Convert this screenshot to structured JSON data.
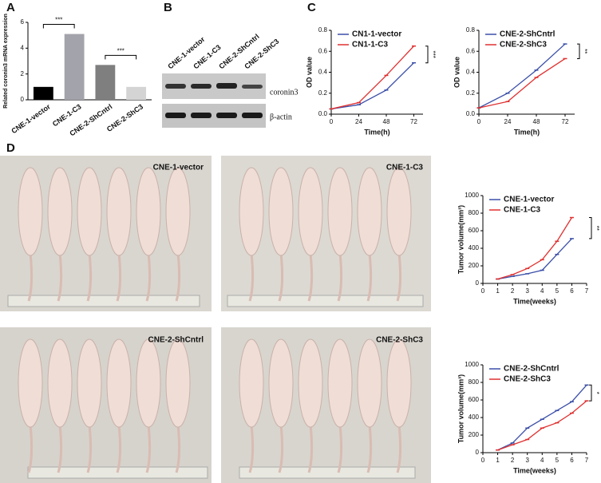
{
  "panel_labels": [
    "A",
    "B",
    "C",
    "D"
  ],
  "blot": {
    "lanes": [
      "CNE-1-vector",
      "CNE-1-C3",
      "CNE-2-ShCntrl",
      "CNE-2-ShC3"
    ],
    "bands": [
      "coronin3",
      "β-actin"
    ]
  },
  "photos": [
    "CNE-1-vector",
    "CNE-1-C3",
    "CNE-2-ShCntrl",
    "CNE-2-ShC3"
  ],
  "chart_data": [
    {
      "type": "bar",
      "ylabel": "Related coronin3 mRNA expression",
      "categories": [
        "CNE-1-vector",
        "CNE-1-C3",
        "CNE-2-ShCntrl",
        "CNE-2-ShC3"
      ],
      "values": [
        1,
        5.1,
        2.7,
        1
      ],
      "colors": [
        "#000000",
        "#a3a3ab",
        "#7f7f7f",
        "#d4d4d4"
      ],
      "ylim": [
        0,
        6
      ],
      "yticks": [
        0,
        2,
        4,
        6
      ],
      "annotations": [
        "***",
        "***"
      ]
    },
    {
      "type": "line",
      "xlabel": "Time(h)",
      "ylabel": "OD value",
      "x": [
        0,
        24,
        48,
        72
      ],
      "series": [
        {
          "name": "CN1-1-vector",
          "color": "#3b4fa8",
          "values": [
            0.05,
            0.09,
            0.23,
            0.49
          ]
        },
        {
          "name": "CN1-1-C3",
          "color": "#e03030",
          "values": [
            0.05,
            0.11,
            0.37,
            0.65
          ]
        }
      ],
      "xlim": [
        0,
        80
      ],
      "xticks": [
        0,
        24,
        48,
        72
      ],
      "ylim": [
        0,
        0.8
      ],
      "yticks": [
        {
          "value": 0,
          "label": "0.0"
        },
        0.2,
        0.4,
        0.6,
        0.8
      ],
      "legend": "upper left",
      "annotation": "***"
    },
    {
      "type": "line",
      "xlabel": "Time(h)",
      "ylabel": "OD value",
      "x": [
        0,
        24,
        48,
        72
      ],
      "series": [
        {
          "name": "CNE-2-ShCntrl",
          "color": "#3b4fa8",
          "values": [
            0.06,
            0.2,
            0.42,
            0.67
          ]
        },
        {
          "name": "CNE-2-ShC3",
          "color": "#e03030",
          "values": [
            0.06,
            0.12,
            0.35,
            0.53
          ]
        }
      ],
      "xlim": [
        0,
        80
      ],
      "xticks": [
        0,
        24,
        48,
        72
      ],
      "ylim": [
        0,
        0.8
      ],
      "yticks": [
        {
          "value": 0,
          "label": "0.0"
        },
        0.2,
        0.4,
        0.6,
        0.8
      ],
      "legend": "upper left",
      "annotation": "**"
    },
    {
      "type": "line",
      "xlabel": "Time(weeks)",
      "ylabel": "Tumor volume(mm³)",
      "x": [
        1,
        2,
        3,
        4,
        5,
        6
      ],
      "series": [
        {
          "name": "CNE-1-vector",
          "color": "#3b4fa8",
          "values": [
            50,
            80,
            110,
            150,
            330,
            510
          ]
        },
        {
          "name": "CNE-1-C3",
          "color": "#e03030",
          "values": [
            50,
            100,
            170,
            270,
            480,
            750
          ]
        }
      ],
      "xlim": [
        0,
        7
      ],
      "xticks": [
        0,
        1,
        2,
        3,
        4,
        5,
        6,
        7
      ],
      "ylim": [
        0,
        1000
      ],
      "yticks": [
        0,
        200,
        400,
        600,
        800,
        1000
      ],
      "legend": "upper left",
      "annotation": "**"
    },
    {
      "type": "line",
      "xlabel": "Time(weeks)",
      "ylabel": "Tumor volume(mm³)",
      "x": [
        1,
        2,
        3,
        4,
        5,
        6,
        7
      ],
      "series": [
        {
          "name": "CNE-2-ShCntrl",
          "color": "#3b4fa8",
          "values": [
            30,
            110,
            280,
            380,
            480,
            580,
            770
          ]
        },
        {
          "name": "CNE-2-ShC3",
          "color": "#e03030",
          "values": [
            30,
            90,
            150,
            280,
            340,
            450,
            590
          ]
        }
      ],
      "xlim": [
        0,
        7
      ],
      "xticks": [
        0,
        1,
        2,
        3,
        4,
        5,
        6,
        7
      ],
      "ylim": [
        0,
        1000
      ],
      "yticks": [
        0,
        200,
        400,
        600,
        800,
        1000
      ],
      "legend": "upper left",
      "annotation": "*"
    }
  ]
}
